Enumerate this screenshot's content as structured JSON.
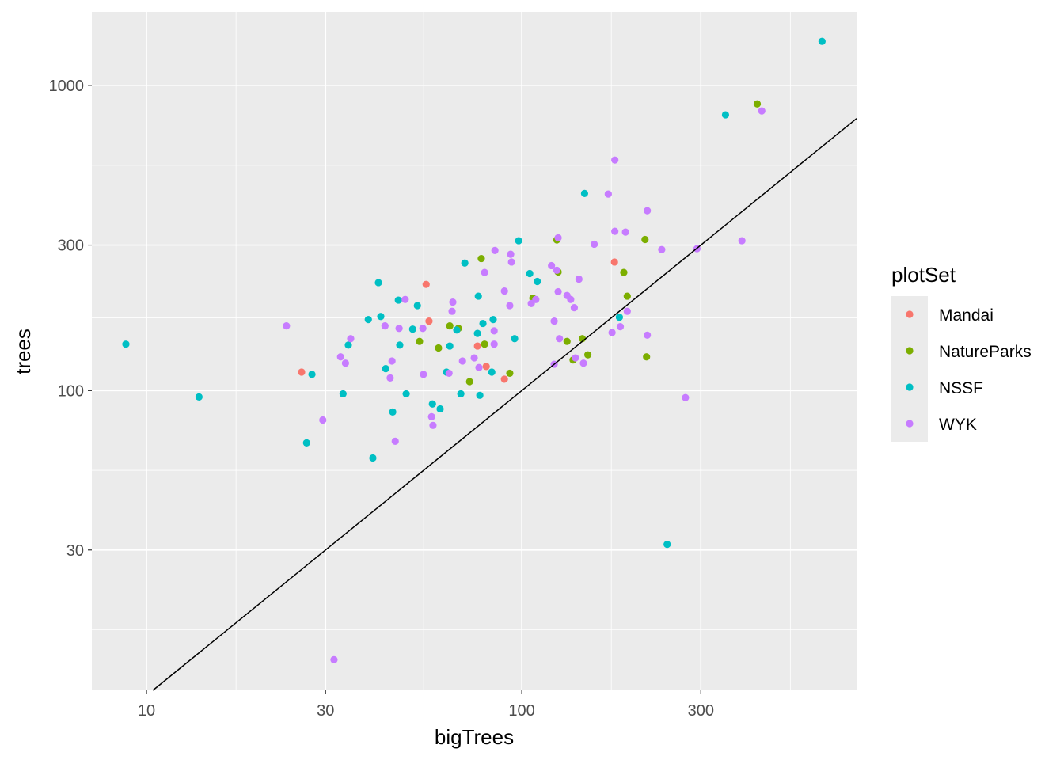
{
  "chart_data": {
    "type": "scatter",
    "xlabel": "bigTrees",
    "ylabel": "trees",
    "xscale": "log10",
    "yscale": "log10",
    "xlim": [
      7.15,
      780
    ],
    "ylim": [
      10.4,
      1745
    ],
    "x_ticks": [
      10,
      30,
      100,
      300
    ],
    "x_tick_labels": [
      "10",
      "30",
      "100",
      "300"
    ],
    "y_ticks": [
      30,
      100,
      300,
      1000
    ],
    "y_tick_labels": [
      "30",
      "100",
      "300",
      "1000"
    ],
    "grid": true,
    "reference_line": {
      "type": "identity",
      "label": "y = x",
      "color": "#000000"
    },
    "legend": {
      "title": "plotSet",
      "placement": "right"
    },
    "series": [
      {
        "name": "Mandai",
        "color": "#F8766D",
        "points": [
          [
            25.9,
            115
          ],
          [
            55.6,
            223
          ],
          [
            56.6,
            169
          ],
          [
            76.2,
            140
          ],
          [
            80.4,
            120
          ],
          [
            89.9,
            109
          ],
          [
            176.6,
            264
          ]
        ]
      },
      {
        "name": "NatureParks",
        "color": "#7CAE00",
        "points": [
          [
            78,
            271
          ],
          [
            124,
            312
          ],
          [
            125,
            245
          ],
          [
            107,
            201
          ],
          [
            191,
            204
          ],
          [
            213,
            313
          ],
          [
            187,
            244
          ],
          [
            53.4,
            145
          ],
          [
            60,
            138
          ],
          [
            64.3,
            163
          ],
          [
            67.8,
            160
          ],
          [
            79.6,
            142
          ],
          [
            72.6,
            107
          ],
          [
            92.9,
            114
          ],
          [
            132,
            145
          ],
          [
            145,
            148
          ],
          [
            137,
            126
          ],
          [
            150,
            131
          ],
          [
            215,
            129
          ],
          [
            424,
            871
          ]
        ]
      },
      {
        "name": "NSSF",
        "color": "#00BFC4",
        "points": [
          [
            8.81,
            142
          ],
          [
            13.8,
            95.3
          ],
          [
            26.7,
            67.4
          ],
          [
            27.6,
            113
          ],
          [
            33.4,
            97.6
          ],
          [
            34.5,
            141
          ],
          [
            39,
            171
          ],
          [
            40.1,
            60.1
          ],
          [
            41.5,
            226
          ],
          [
            42.1,
            175
          ],
          [
            43.4,
            118
          ],
          [
            45.3,
            85.1
          ],
          [
            46.9,
            198
          ],
          [
            47.3,
            141
          ],
          [
            49.2,
            97.6
          ],
          [
            51.2,
            159
          ],
          [
            52.7,
            190
          ],
          [
            57.8,
            90.4
          ],
          [
            60.6,
            87.1
          ],
          [
            63,
            115
          ],
          [
            64.3,
            140
          ],
          [
            67.1,
            158
          ],
          [
            68.8,
            97.6
          ],
          [
            70.5,
            262
          ],
          [
            76.2,
            154
          ],
          [
            76.6,
            204
          ],
          [
            77.3,
            96.5
          ],
          [
            78.8,
            166
          ],
          [
            83.2,
            115
          ],
          [
            83.9,
            171
          ],
          [
            95.7,
            148
          ],
          [
            98.1,
            310
          ],
          [
            105,
            242
          ],
          [
            110,
            228
          ],
          [
            147,
            443
          ],
          [
            182,
            174
          ],
          [
            244,
            31.3
          ],
          [
            349,
            802
          ],
          [
            631,
            1397
          ]
        ]
      },
      {
        "name": "WYK",
        "color": "#C77CFF",
        "points": [
          [
            23.6,
            163
          ],
          [
            29.5,
            80.1
          ],
          [
            31.6,
            13.1
          ],
          [
            32.9,
            129
          ],
          [
            33.9,
            123
          ],
          [
            35,
            148
          ],
          [
            43.2,
            163
          ],
          [
            44.6,
            110
          ],
          [
            45.1,
            125
          ],
          [
            46,
            68.2
          ],
          [
            47.1,
            160
          ],
          [
            48.9,
            199
          ],
          [
            54.5,
            160
          ],
          [
            54.7,
            113
          ],
          [
            57.5,
            82.1
          ],
          [
            58,
            76.9
          ],
          [
            64,
            114
          ],
          [
            65.2,
            182
          ],
          [
            65.5,
            195
          ],
          [
            69.5,
            125
          ],
          [
            74.7,
            128
          ],
          [
            76.9,
            119
          ],
          [
            79.6,
            244
          ],
          [
            84.4,
            142
          ],
          [
            84.4,
            157
          ],
          [
            84.8,
            288
          ],
          [
            93.4,
            280
          ],
          [
            93.9,
            264
          ],
          [
            89.9,
            212
          ],
          [
            92.9,
            190
          ],
          [
            106,
            193
          ],
          [
            109,
            199
          ],
          [
            120,
            257
          ],
          [
            122,
            169
          ],
          [
            122,
            122
          ],
          [
            125,
            317
          ],
          [
            124,
            248
          ],
          [
            125,
            211
          ],
          [
            126,
            148
          ],
          [
            132,
            205
          ],
          [
            135,
            199
          ],
          [
            138,
            187
          ],
          [
            139,
            128
          ],
          [
            142,
            232
          ],
          [
            146,
            123
          ],
          [
            156,
            302
          ],
          [
            170,
            441
          ],
          [
            174,
            155
          ],
          [
            177,
            570
          ],
          [
            177,
            333
          ],
          [
            183,
            162
          ],
          [
            189,
            331
          ],
          [
            191,
            182
          ],
          [
            216,
            389
          ],
          [
            216,
            152
          ],
          [
            236,
            290
          ],
          [
            273,
            94.8
          ],
          [
            293,
            292
          ],
          [
            386,
            310
          ],
          [
            436,
            826
          ]
        ]
      }
    ]
  }
}
